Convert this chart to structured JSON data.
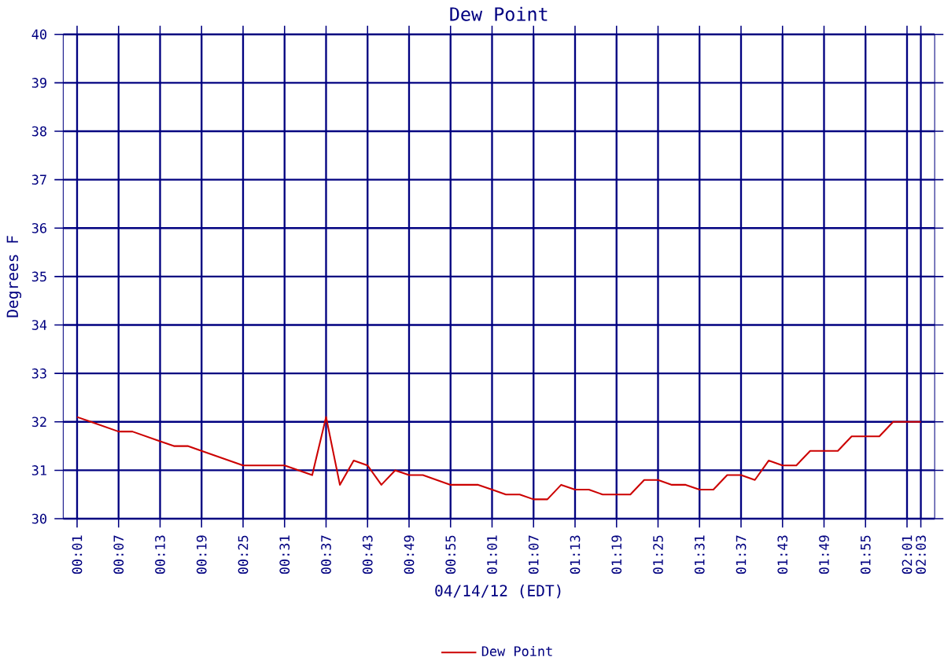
{
  "chart_data": {
    "type": "line",
    "title": "Dew Point",
    "xlabel": "04/14/12 (EDT)",
    "ylabel": "Degrees F",
    "series": [
      {
        "name": "Dew Point",
        "color": "#cc0000",
        "x": [
          0.0167,
          0.05,
          0.1167,
          0.15,
          0.2167,
          0.25,
          0.2833,
          0.3167,
          0.4167,
          0.5167,
          0.5833,
          0.6167,
          0.65,
          0.6833,
          0.7167,
          0.75,
          0.7833,
          0.8167,
          0.85,
          0.8833,
          0.9167,
          0.9833,
          1.0167,
          1.05,
          1.0833,
          1.1167,
          1.15,
          1.1833,
          1.2167,
          1.25,
          1.2833,
          1.3167,
          1.35,
          1.3833,
          1.4167,
          1.45,
          1.4833,
          1.5167,
          1.55,
          1.5833,
          1.6167,
          1.65,
          1.6833,
          1.7167,
          1.75,
          1.7833,
          1.8167,
          1.85,
          1.8833,
          1.9167,
          1.95,
          1.9833,
          2.05
        ],
        "values": [
          32.1,
          32.0,
          31.8,
          31.8,
          31.6,
          31.5,
          31.5,
          31.4,
          31.1,
          31.1,
          30.9,
          32.1,
          30.7,
          31.2,
          31.1,
          30.7,
          31.0,
          30.9,
          30.9,
          30.8,
          30.7,
          30.7,
          30.6,
          30.5,
          30.5,
          30.4,
          30.4,
          30.7,
          30.6,
          30.6,
          30.5,
          30.5,
          30.5,
          30.8,
          30.8,
          30.7,
          30.7,
          30.6,
          30.6,
          30.9,
          30.9,
          30.8,
          31.2,
          31.1,
          31.1,
          31.4,
          31.4,
          31.4,
          31.7,
          31.7,
          31.7,
          32.0,
          32.0
        ]
      }
    ],
    "xlim": [
      -0.0167,
      2.0833
    ],
    "ylim": [
      30,
      40
    ],
    "xticks": [
      {
        "value": 0.0167,
        "label": "00:01"
      },
      {
        "value": 0.1167,
        "label": "00:07"
      },
      {
        "value": 0.2167,
        "label": "00:13"
      },
      {
        "value": 0.3167,
        "label": "00:19"
      },
      {
        "value": 0.4167,
        "label": "00:25"
      },
      {
        "value": 0.5167,
        "label": "00:31"
      },
      {
        "value": 0.6167,
        "label": "00:37"
      },
      {
        "value": 0.7167,
        "label": "00:43"
      },
      {
        "value": 0.8167,
        "label": "00:49"
      },
      {
        "value": 0.9167,
        "label": "00:55"
      },
      {
        "value": 1.0167,
        "label": "01:01"
      },
      {
        "value": 1.1167,
        "label": "01:07"
      },
      {
        "value": 1.2167,
        "label": "01:13"
      },
      {
        "value": 1.3167,
        "label": "01:19"
      },
      {
        "value": 1.4167,
        "label": "01:25"
      },
      {
        "value": 1.5167,
        "label": "01:31"
      },
      {
        "value": 1.6167,
        "label": "01:37"
      },
      {
        "value": 1.7167,
        "label": "01:43"
      },
      {
        "value": 1.8167,
        "label": "01:49"
      },
      {
        "value": 1.9167,
        "label": "01:55"
      },
      {
        "value": 2.0167,
        "label": "02:01"
      },
      {
        "value": 2.05,
        "label": "02:03"
      }
    ],
    "yticks": [
      30,
      31,
      32,
      33,
      34,
      35,
      36,
      37,
      38,
      39,
      40
    ],
    "grid": true,
    "legend": "bottom",
    "marker": "none",
    "line_style": "solid"
  }
}
